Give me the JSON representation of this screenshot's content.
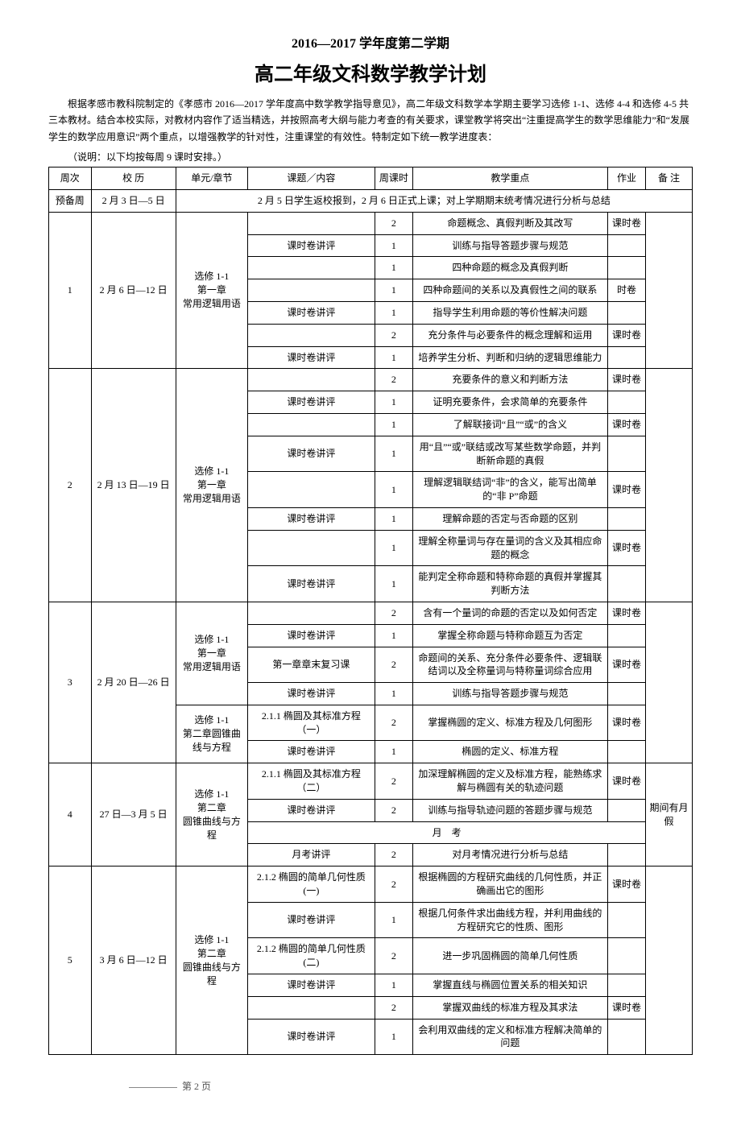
{
  "header": {
    "subtitle": "2016—2017 学年度第二学期",
    "title": "高二年级文科数学教学计划"
  },
  "intro": "根据孝感市教科院制定的《孝感市 2016—2017 学年度高中数学教学指导意见》，高二年级文科数学本学期主要学习选修 1-1、选修 4-4 和选修 4-5 共三本教材。结合本校实际，对教材内容作了适当精选，并按照高考大纲与能力考查的有关要求，课堂教学将突出“注重提高学生的数学思维能力”和“发展学生的数学应用意识”两个重点，以增强教学的针对性，注重课堂的有效性。特制定如下统一教学进度表：",
  "note": "（说明：以下均按每周 9 课时安排。）",
  "columns": [
    "周次",
    "校 历",
    "单元/章节",
    "课题／内容",
    "周课时",
    "教学重点",
    "作业",
    "备 注"
  ],
  "prep_row": {
    "label": "预备周",
    "cal": "2 月 3 日—5 日",
    "content": "2 月 5 日学生返校报到，2 月 6 日正式上课；对上学期期末统考情况进行分析与总结"
  },
  "weeks": [
    {
      "num": "1",
      "cal": "2 月 6 日—12 日",
      "units": [
        {
          "name": "选修 1-1\n第一章\n常用逻辑用语",
          "rows": [
            {
              "topic": "",
              "hours": "2",
              "focus": "命题概念、真假判断及其改写",
              "hw": "课时卷",
              "note": ""
            },
            {
              "topic": "课时卷讲评",
              "hours": "1",
              "focus": "训练与指导答题步骤与规范",
              "hw": "",
              "note": ""
            },
            {
              "topic": "",
              "hours": "1",
              "focus": "四种命题的概念及真假判断",
              "hw": "",
              "note": ""
            },
            {
              "topic": "",
              "hours": "1",
              "focus": "四种命题间的关系以及真假性之间的联系",
              "hw": "时卷",
              "note": ""
            },
            {
              "topic": "课时卷讲评",
              "hours": "1",
              "focus": "指导学生利用命题的等价性解决问题",
              "hw": "",
              "note": ""
            },
            {
              "topic": "",
              "hours": "2",
              "focus": "充分条件与必要条件的概念理解和运用",
              "hw": "课时卷",
              "note": ""
            },
            {
              "topic": "课时卷讲评",
              "hours": "1",
              "focus": "培养学生分析、判断和归纳的逻辑思维能力",
              "hw": "",
              "note": ""
            }
          ]
        }
      ]
    },
    {
      "num": "2",
      "cal": "2 月 13 日—19 日",
      "units": [
        {
          "name": "选修 1-1\n第一章\n常用逻辑用语",
          "rows": [
            {
              "topic": "",
              "hours": "2",
              "focus": "充要条件的意义和判断方法",
              "hw": "课时卷",
              "note": ""
            },
            {
              "topic": "课时卷讲评",
              "hours": "1",
              "focus": "证明充要条件，会求简单的充要条件",
              "hw": "",
              "note": ""
            },
            {
              "topic": "",
              "hours": "1",
              "focus": "了解联接词“且”“或”的含义",
              "hw": "课时卷",
              "note": ""
            },
            {
              "topic": "课时卷讲评",
              "hours": "1",
              "focus": "用“且”“或”联结或改写某些数学命题，并判断新命题的真假",
              "hw": "",
              "note": ""
            },
            {
              "topic": "",
              "hours": "1",
              "focus": "理解逻辑联结词“非”的含义，能写出简单的“非 P”命题",
              "hw": "课时卷",
              "note": ""
            },
            {
              "topic": "课时卷讲评",
              "hours": "1",
              "focus": "理解命题的否定与否命题的区别",
              "hw": "",
              "note": ""
            },
            {
              "topic": "",
              "hours": "1",
              "focus": "理解全称量词与存在量词的含义及其相应命题的概念",
              "hw": "课时卷",
              "note": ""
            },
            {
              "topic": "课时卷讲评",
              "hours": "1",
              "focus": "能判定全称命题和特称命题的真假并掌握其判断方法",
              "hw": "",
              "note": ""
            }
          ]
        }
      ]
    },
    {
      "num": "3",
      "cal": "2 月 20 日—26 日",
      "units": [
        {
          "name": "选修 1-1\n第一章\n常用逻辑用语",
          "rows": [
            {
              "topic": "",
              "hours": "2",
              "focus": "含有一个量词的命题的否定以及如何否定",
              "hw": "课时卷",
              "note": ""
            },
            {
              "topic": "课时卷讲评",
              "hours": "1",
              "focus": "掌握全称命题与特称命题互为否定",
              "hw": "",
              "note": ""
            },
            {
              "topic": "第一章章末复习课",
              "hours": "2",
              "focus": "命题间的关系、充分条件必要条件、逻辑联结词以及全称量词与特称量词综合应用",
              "hw": "课时卷",
              "note": ""
            },
            {
              "topic": "课时卷讲评",
              "hours": "1",
              "focus": "训练与指导答题步骤与规范",
              "hw": "",
              "note": ""
            }
          ]
        },
        {
          "name": "选修 1-1\n第二章圆锥曲线与方程",
          "rows": [
            {
              "topic": "2.1.1 椭圆及其标准方程（一）",
              "hours": "2",
              "focus": "掌握椭圆的定义、标准方程及几何图形",
              "hw": "课时卷",
              "note": ""
            },
            {
              "topic": "课时卷讲评",
              "hours": "1",
              "focus": "椭圆的定义、标准方程",
              "hw": "",
              "note": ""
            }
          ]
        }
      ]
    },
    {
      "num": "4",
      "cal": "27 日—3 月 5 日",
      "note": "期间有月假",
      "units": [
        {
          "name": "选修 1-1\n第二章\n圆锥曲线与方程",
          "rows": [
            {
              "topic": "2.1.1 椭圆及其标准方程（二）",
              "hours": "2",
              "focus": "加深理解椭圆的定义及标准方程，能熟练求解与椭圆有关的轨迹问题",
              "hw": "课时卷"
            },
            {
              "topic": "课时卷讲评",
              "hours": "2",
              "focus": "训练与指导轨迹问题的答题步骤与规范",
              "hw": ""
            },
            {
              "topic": "月　考",
              "span": 4
            },
            {
              "topic": "月考讲评",
              "hours": "2",
              "focus": "对月考情况进行分析与总结",
              "hw": ""
            }
          ]
        }
      ]
    },
    {
      "num": "5",
      "cal": "3 月 6 日—12 日",
      "units": [
        {
          "name": "选修 1-1\n第二章\n圆锥曲线与方程",
          "rows": [
            {
              "topic": "2.1.2 椭圆的简单几何性质(一)",
              "hours": "2",
              "focus": "根据椭圆的方程研究曲线的几何性质，并正确画出它的图形",
              "hw": "课时卷",
              "note": ""
            },
            {
              "topic": "课时卷讲评",
              "hours": "1",
              "focus": "根据几何条件求出曲线方程，并利用曲线的方程研究它的性质、图形",
              "hw": "",
              "note": ""
            },
            {
              "topic": "2.1.2 椭圆的简单几何性质(二)",
              "hours": "2",
              "focus": "进一步巩固椭圆的简单几何性质",
              "hw": "",
              "note": ""
            },
            {
              "topic": "课时卷讲评",
              "hours": "1",
              "focus": "掌握直线与椭圆位置关系的相关知识",
              "hw": "",
              "note": ""
            },
            {
              "topic": "",
              "hours": "2",
              "focus": "掌握双曲线的标准方程及其求法",
              "hw": "课时卷",
              "note": ""
            },
            {
              "topic": "课时卷讲评",
              "hours": "1",
              "focus": "会利用双曲线的定义和标准方程解决简单的问题",
              "hw": "",
              "note": ""
            }
          ]
        }
      ]
    }
  ],
  "footer": "第 2 页"
}
